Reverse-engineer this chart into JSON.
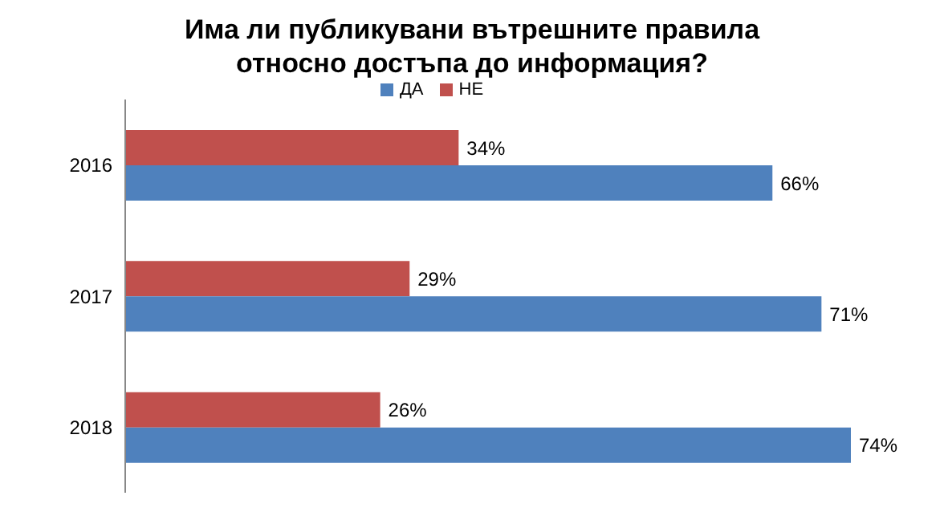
{
  "chart_data": {
    "type": "bar",
    "orientation": "horizontal",
    "title": "Има ли публикувани вътрешните правила относно достъпа до информация?",
    "categories": [
      "2016",
      "2017",
      "2018"
    ],
    "series": [
      {
        "name": "НЕ",
        "color": "#c0504d",
        "values": [
          34,
          29,
          26
        ],
        "value_labels": [
          "34%",
          "29%",
          "26%"
        ]
      },
      {
        "name": "ДА",
        "color": "#4f81bd",
        "values": [
          66,
          71,
          74
        ],
        "value_labels": [
          "66%",
          "71%",
          "74%"
        ]
      }
    ],
    "legend": "top"
  }
}
